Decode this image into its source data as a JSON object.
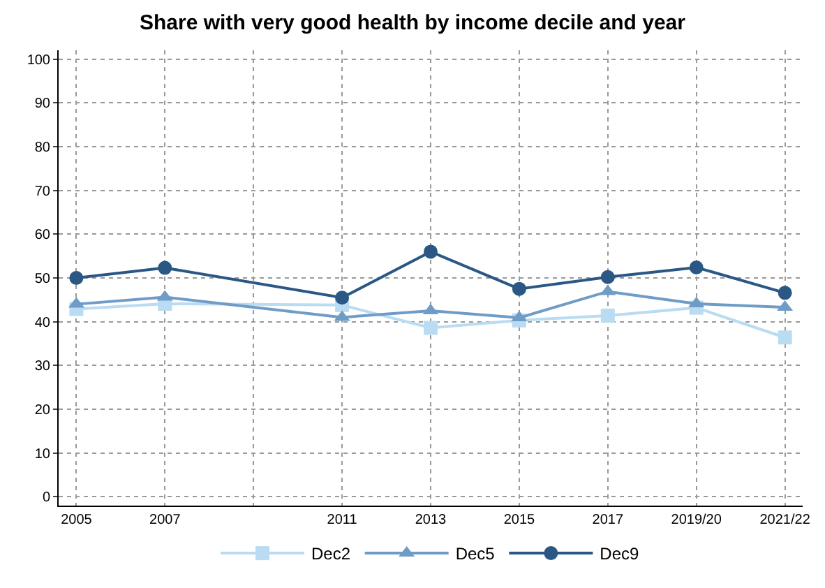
{
  "chart_data": {
    "type": "line",
    "title": "Share with very good health by income decile and year",
    "x": [
      2005,
      2007,
      2011,
      2013,
      2015,
      2017,
      2019,
      2021
    ],
    "series": [
      {
        "name": "Dec2",
        "color": "#b9dcf2",
        "marker": "square",
        "values": [
          42.9,
          44.1,
          43.8,
          38.6,
          40.3,
          41.4,
          43.2,
          36.4
        ]
      },
      {
        "name": "Dec5",
        "color": "#6f9cc7",
        "marker": "triangle",
        "values": [
          44,
          45.6,
          41,
          42.5,
          40.9,
          46.9,
          44.1,
          43.3
        ]
      },
      {
        "name": "Dec9",
        "color": "#2b5784",
        "marker": "circle",
        "values": [
          50,
          52.3,
          45.5,
          56,
          47.5,
          50.2,
          52.4,
          46.6
        ]
      }
    ],
    "xlim": [
      2004.6,
      2021.4
    ],
    "xticks": [
      2005,
      2007,
      {
        "value": 2009,
        "label": null
      },
      2011,
      2013,
      2015,
      2017,
      {
        "value": 2019,
        "label": "2019/20"
      },
      {
        "value": 2021,
        "label": "2021/22"
      }
    ],
    "ylim": [
      -2,
      102
    ],
    "yticks": [
      0,
      10,
      20,
      30,
      40,
      50,
      60,
      70,
      80,
      90,
      100
    ],
    "grid": true,
    "legend": "bottom",
    "line_style": "solid"
  }
}
